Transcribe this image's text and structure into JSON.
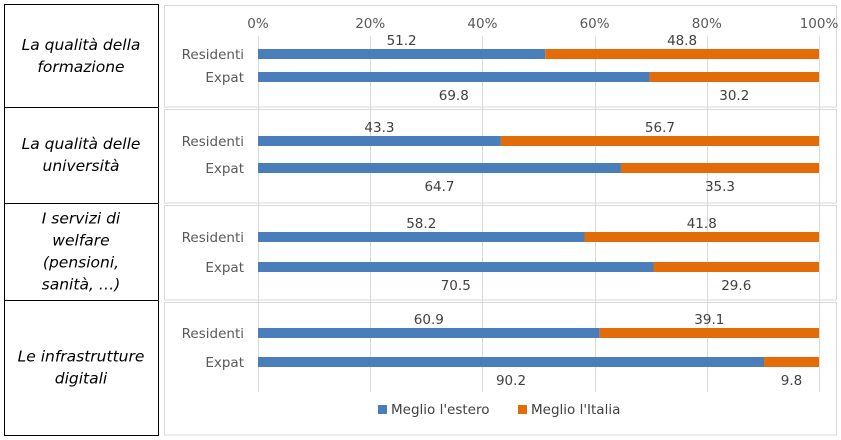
{
  "chart_data": {
    "type": "bar",
    "orientation": "horizontal",
    "stacked": true,
    "xlim": [
      0,
      100
    ],
    "x_ticks": [
      "0%",
      "20%",
      "40%",
      "60%",
      "80%",
      "100%"
    ],
    "legend": {
      "placement": "bottom",
      "entries": [
        {
          "name": "Meglio l'estero",
          "color": "#4a7ebb"
        },
        {
          "name": "Meglio l'Italia",
          "color": "#e36c09"
        }
      ]
    },
    "panels": [
      {
        "label": "La qualità della formazione",
        "label_lines": [
          "La qualità della",
          "formazione"
        ],
        "rows": [
          {
            "category": "Residenti",
            "values": [
              51.2,
              48.8
            ],
            "labels": [
              "51.2",
              "48.8"
            ]
          },
          {
            "category": "Expat",
            "values": [
              69.8,
              30.2
            ],
            "labels": [
              "69.8",
              "30.2"
            ]
          }
        ]
      },
      {
        "label": "La qualità delle università",
        "label_lines": [
          "La qualità delle",
          "università"
        ],
        "rows": [
          {
            "category": "Residenti",
            "values": [
              43.3,
              56.7
            ],
            "labels": [
              "43.3",
              "56.7"
            ]
          },
          {
            "category": "Expat",
            "values": [
              64.7,
              35.3
            ],
            "labels": [
              "64.7",
              "35.3"
            ]
          }
        ]
      },
      {
        "label": "I servizi di welfare (pensioni, sanità, …)",
        "label_lines": [
          "I servizi di",
          "welfare",
          "(pensioni,",
          "sanità, …)"
        ],
        "rows": [
          {
            "category": "Residenti",
            "values": [
              58.2,
              41.8
            ],
            "labels": [
              "58.2",
              "41.8"
            ]
          },
          {
            "category": "Expat",
            "values": [
              70.5,
              29.6
            ],
            "labels": [
              "70.5",
              "29.6"
            ]
          }
        ]
      },
      {
        "label": "Le infrastrutture digitali",
        "label_lines": [
          "Le infrastrutture",
          "digitali"
        ],
        "rows": [
          {
            "category": "Residenti",
            "values": [
              60.9,
              39.1
            ],
            "labels": [
              "60.9",
              "39.1"
            ]
          },
          {
            "category": "Expat",
            "values": [
              90.2,
              9.8
            ],
            "labels": [
              "90.2",
              "9.8"
            ]
          }
        ]
      }
    ]
  }
}
